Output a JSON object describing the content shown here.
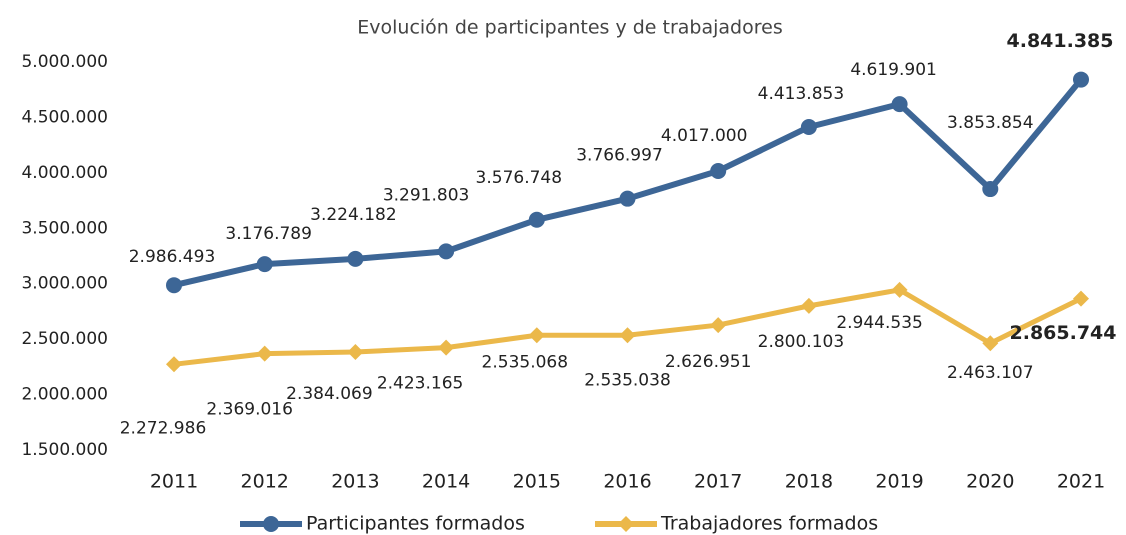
{
  "chart_data": {
    "type": "line",
    "title": "Evolución de participantes y de trabajadores",
    "categories": [
      "2011",
      "2012",
      "2013",
      "2014",
      "2015",
      "2016",
      "2017",
      "2018",
      "2019",
      "2020",
      "2021"
    ],
    "series": [
      {
        "name": "Participantes formados",
        "color": "#3d6696",
        "marker": "circle",
        "values": [
          2986493,
          3176789,
          3224182,
          3291803,
          3576748,
          3766997,
          4017000,
          4413853,
          4619901,
          3853854,
          4841385
        ],
        "value_labels": [
          "2.986.493",
          "3.176.789",
          "3.224.182",
          "3.291.803",
          "3.576.748",
          "3.766.997",
          "4.017.000",
          "4.413.853",
          "4.619.901",
          "3.853.854",
          "4.841.385"
        ]
      },
      {
        "name": "Trabajadores formados",
        "color": "#ebb84a",
        "marker": "diamond",
        "values": [
          2272986,
          2369016,
          2384069,
          2423165,
          2535068,
          2535038,
          2626951,
          2800103,
          2944535,
          2463107,
          2865744
        ],
        "value_labels": [
          "2.272.986",
          "2.369.016",
          "2.384.069",
          "2.423.165",
          "2.535.068",
          "2.535.038",
          "2.626.951",
          "2.800.103",
          "2.944.535",
          "2.463.107",
          "2.865.744"
        ]
      }
    ],
    "ylim": [
      1500000,
      5000000
    ],
    "yticks": [
      {
        "value": 1500000,
        "label": "1.500.000"
      },
      {
        "value": 2000000,
        "label": "2.000.000"
      },
      {
        "value": 2500000,
        "label": "2.500.000"
      },
      {
        "value": 3000000,
        "label": "3.000.000"
      },
      {
        "value": 3500000,
        "label": "3.500.000"
      },
      {
        "value": 4000000,
        "label": "4.000.000"
      },
      {
        "value": 4500000,
        "label": "4.500.000"
      },
      {
        "value": 5000000,
        "label": "5.000.000"
      }
    ],
    "grid": false,
    "legend": "bottom"
  }
}
